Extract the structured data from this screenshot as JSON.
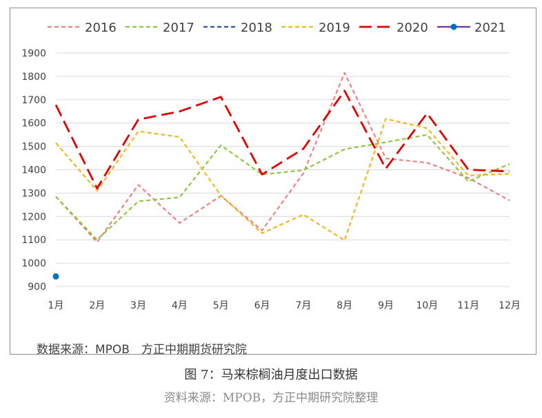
{
  "chart_data": {
    "type": "line",
    "title": "",
    "xlabel": "",
    "ylabel": "",
    "categories": [
      "1月",
      "2月",
      "3月",
      "4月",
      "5月",
      "6月",
      "7月",
      "8月",
      "9月",
      "10月",
      "11月",
      "12月"
    ],
    "ylim": [
      900,
      1900
    ],
    "yticks": [
      900,
      1000,
      1100,
      1200,
      1300,
      1400,
      1500,
      1600,
      1700,
      1800,
      1900
    ],
    "grid": true,
    "legend_position": "top",
    "series": [
      {
        "name": "2016",
        "color": "#f08080",
        "dash": "short",
        "values": [
          1285,
          1090,
          1335,
          1172,
          1288,
          1140,
          1385,
          1815,
          1448,
          1430,
          1365,
          1268
        ]
      },
      {
        "name": "2017",
        "color": "#8dc63f",
        "dash": "short",
        "values": [
          1285,
          1100,
          1265,
          1282,
          1505,
          1380,
          1398,
          1488,
          1518,
          1550,
          1350,
          1425
        ]
      },
      {
        "name": "2018",
        "color": "#2e4fb5",
        "dash": "short",
        "values": [
          null,
          null,
          null,
          null,
          null,
          null,
          null,
          null,
          null,
          null,
          null,
          null
        ]
      },
      {
        "name": "2019",
        "color": "#f2b620",
        "dash": "short",
        "values": [
          1515,
          1310,
          1565,
          1540,
          1290,
          1128,
          1208,
          1098,
          1618,
          1578,
          1375,
          1383
        ]
      },
      {
        "name": "2020",
        "color": "#e00000",
        "dash": "long",
        "values": [
          1678,
          1320,
          1615,
          1650,
          1712,
          1380,
          1490,
          1738,
          1405,
          1642,
          1400,
          1393
        ]
      },
      {
        "name": "2021",
        "color": "#0070c0",
        "dash": "solid",
        "marker": "circle",
        "legend_color": "#7030a0",
        "values": [
          943,
          null,
          null,
          null,
          null,
          null,
          null,
          null,
          null,
          null,
          null,
          null
        ]
      }
    ]
  },
  "source_inner": "数据来源：MPOB　方正中期期货研究院",
  "caption": "图 7：马来棕榈油月度出口数据",
  "caption_source": "资料来源：MPOB，方正中期研究院整理"
}
